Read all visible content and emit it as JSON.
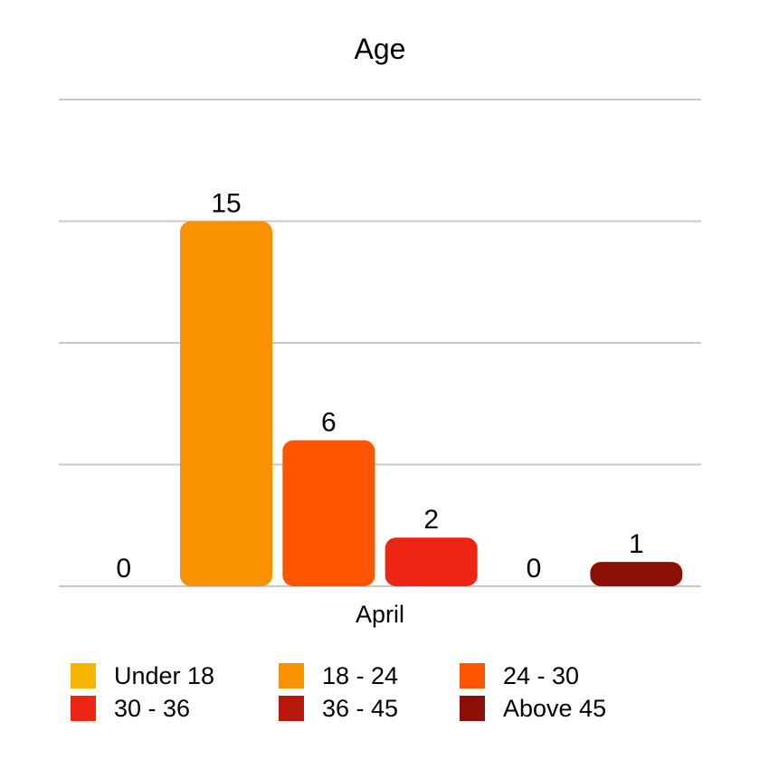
{
  "chart_data": {
    "type": "bar",
    "title": "Age",
    "categories": [
      "April"
    ],
    "series": [
      {
        "name": "Under 18",
        "values": [
          0
        ],
        "color": "#F7B500"
      },
      {
        "name": "18 - 24",
        "values": [
          15
        ],
        "color": "#FA9200"
      },
      {
        "name": "24 - 30",
        "values": [
          6
        ],
        "color": "#FD5500"
      },
      {
        "name": "30 - 36",
        "values": [
          2
        ],
        "color": "#EE2512"
      },
      {
        "name": "36 - 45",
        "values": [
          0
        ],
        "color": "#B8180B"
      },
      {
        "name": "Above 45",
        "values": [
          1
        ],
        "color": "#8B0F04"
      }
    ],
    "ylim": [
      0,
      20
    ],
    "grid": true,
    "legend_position": "bottom",
    "xlabel": "",
    "ylabel": ""
  }
}
